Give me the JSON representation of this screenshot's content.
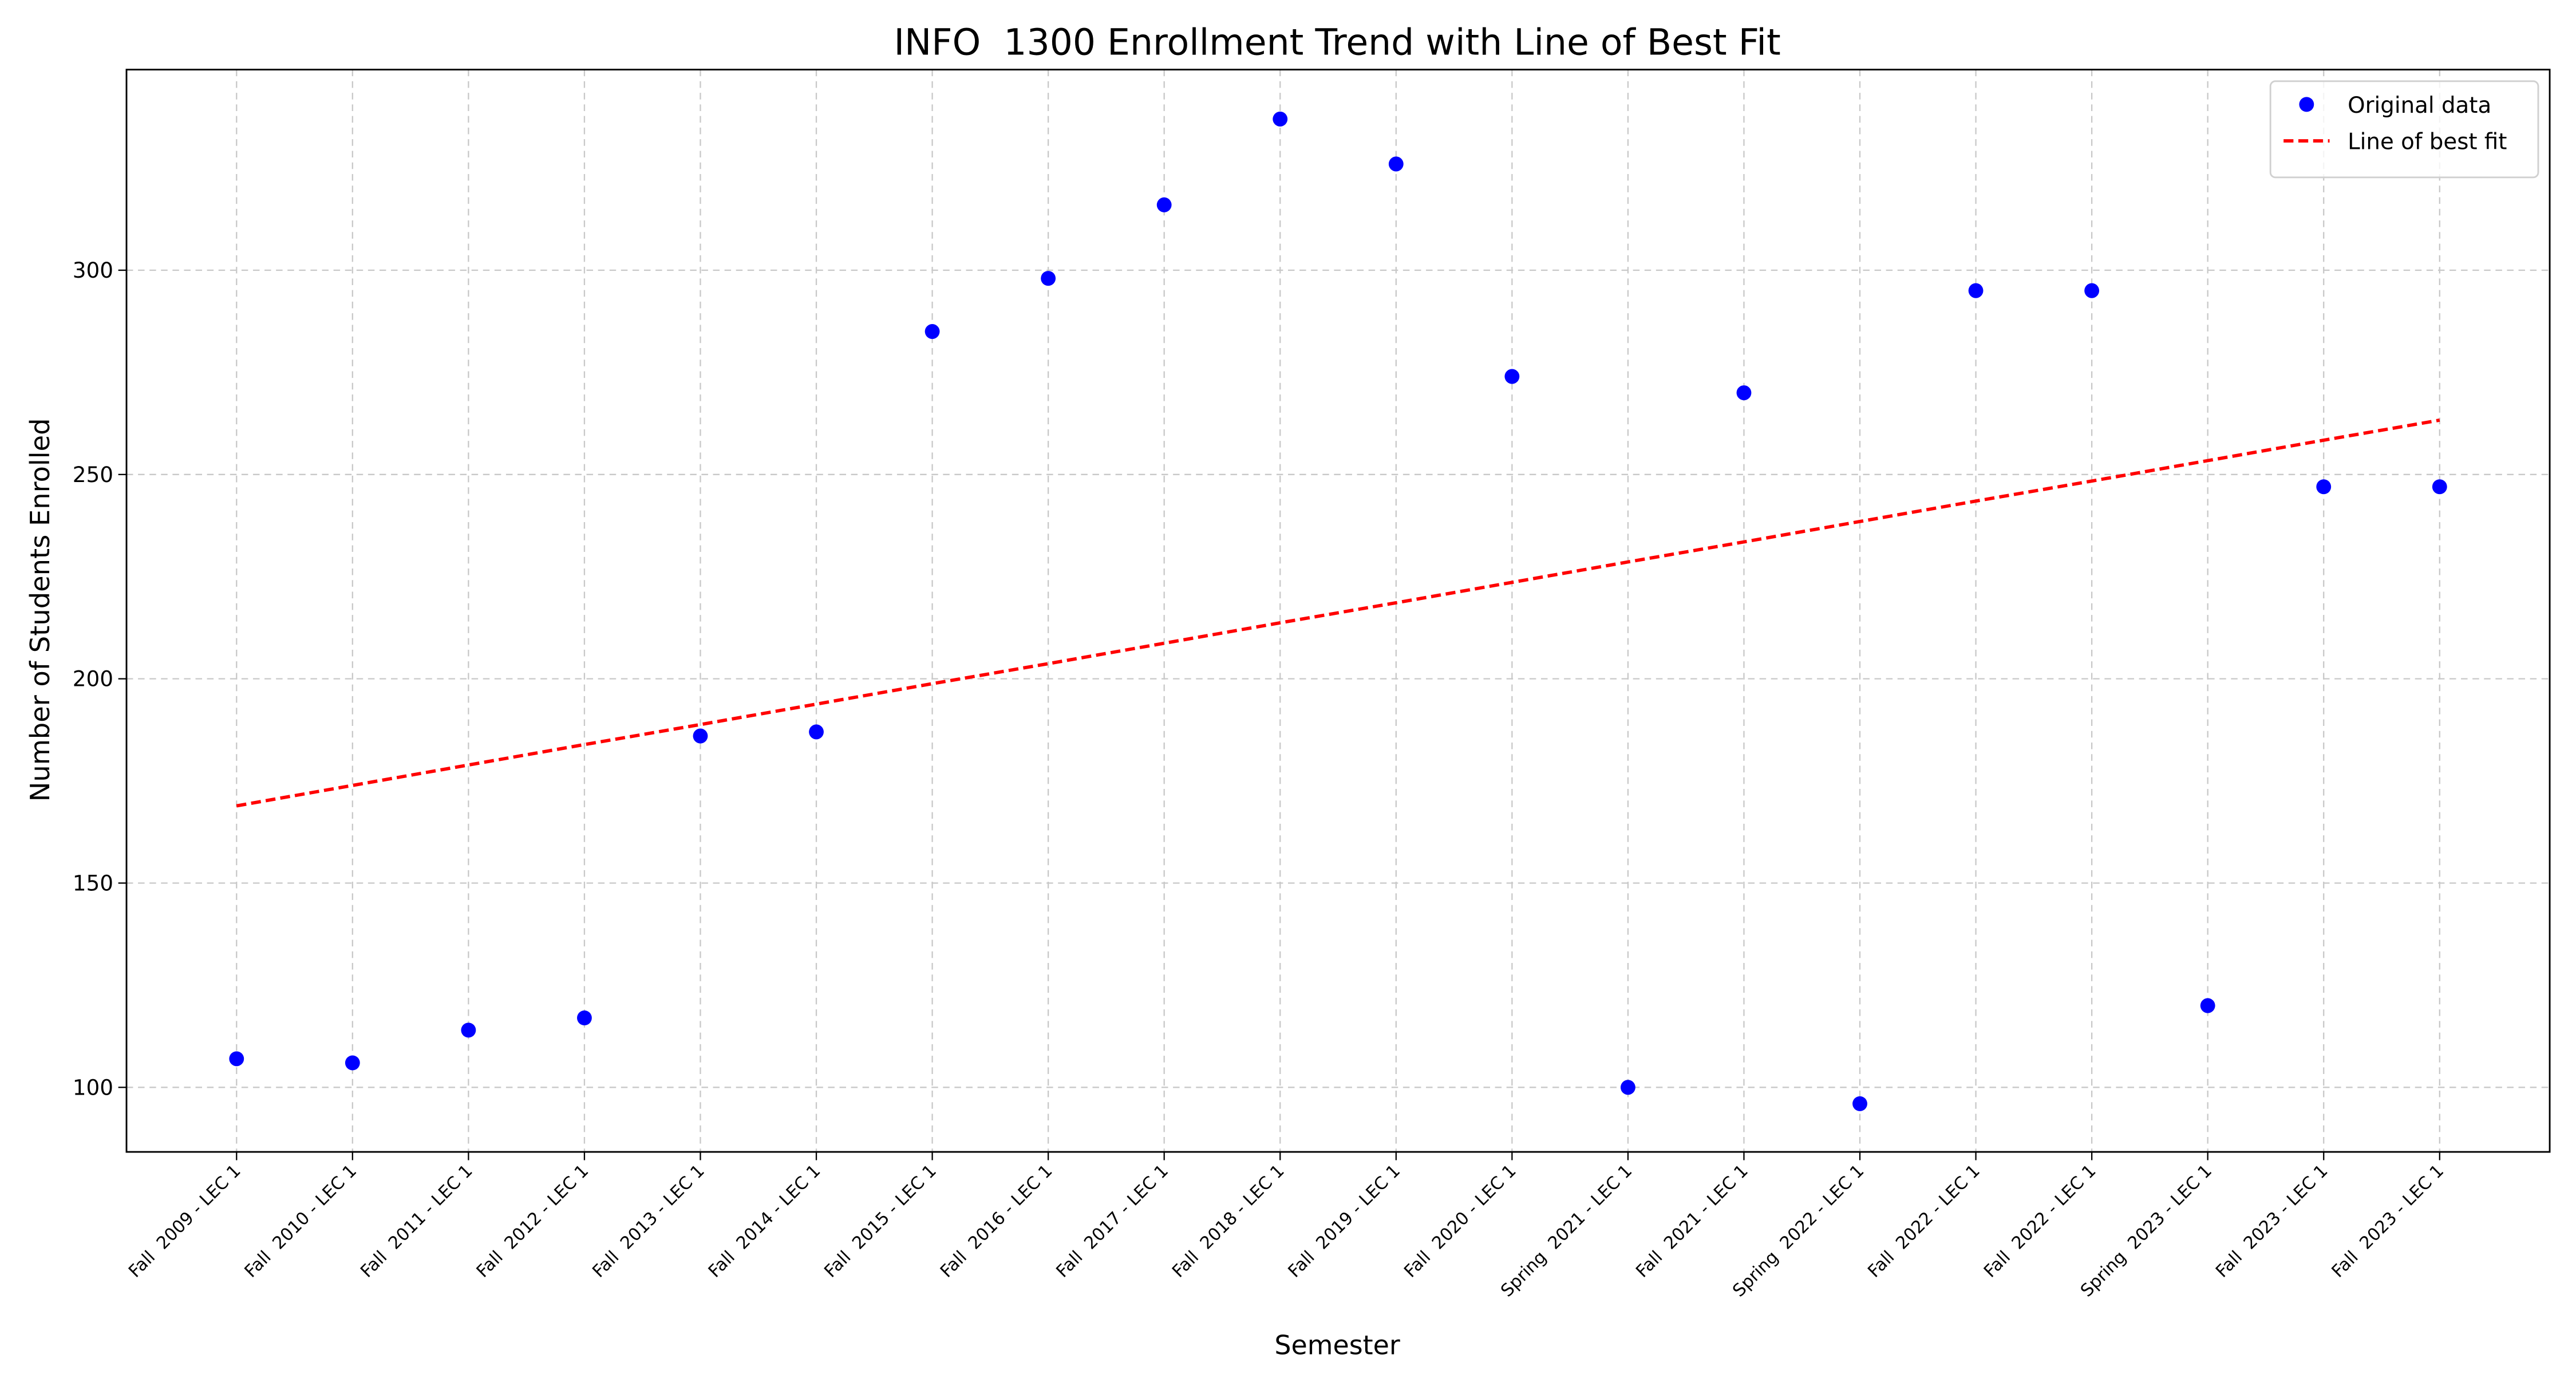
{
  "chart_data": {
    "type": "scatter",
    "title": "INFO  1300 Enrollment Trend with Line of Best Fit",
    "x_label": "Semester",
    "y_label": "Number of Students Enrolled",
    "categories": [
      "Fall  2009 - LEC 1",
      "Fall  2010 - LEC 1",
      "Fall  2011 - LEC 1",
      "Fall  2012 - LEC 1",
      "Fall  2013 - LEC 1",
      "Fall  2014 - LEC 1",
      "Fall  2015 - LEC 1",
      "Fall  2016 - LEC 1",
      "Fall  2017 - LEC 1",
      "Fall  2018 - LEC 1",
      "Fall  2019 - LEC 1",
      "Fall  2020 - LEC 1",
      "Spring  2021 - LEC 1",
      "Fall  2021 - LEC 1",
      "Spring  2022 - LEC 1",
      "Fall  2022 - LEC 1",
      "Fall  2022 - LEC 1",
      "Spring  2023 - LEC 1",
      "Fall  2023 - LEC 1",
      "Fall  2023 - LEC 1"
    ],
    "series": [
      {
        "name": "Original data",
        "color": "#0000ff",
        "style": "markers",
        "values": [
          107,
          106,
          114,
          117,
          186,
          187,
          285,
          298,
          316,
          337,
          326,
          274,
          100,
          270,
          96,
          295,
          295,
          120,
          247,
          247
        ]
      },
      {
        "name": "Line of best fit",
        "color": "#ff0000",
        "style": "dashed",
        "values": [
          168.9,
          173.9,
          178.9,
          183.9,
          188.8,
          193.8,
          198.8,
          203.7,
          208.7,
          213.7,
          218.6,
          223.6,
          228.6,
          233.5,
          238.5,
          243.5,
          248.4,
          253.4,
          258.4,
          263.3
        ]
      }
    ],
    "ylim": [
      84.2,
      349.1
    ],
    "yticks": [
      100,
      150,
      200,
      250,
      300
    ],
    "grid": true,
    "legend": "upper right"
  }
}
